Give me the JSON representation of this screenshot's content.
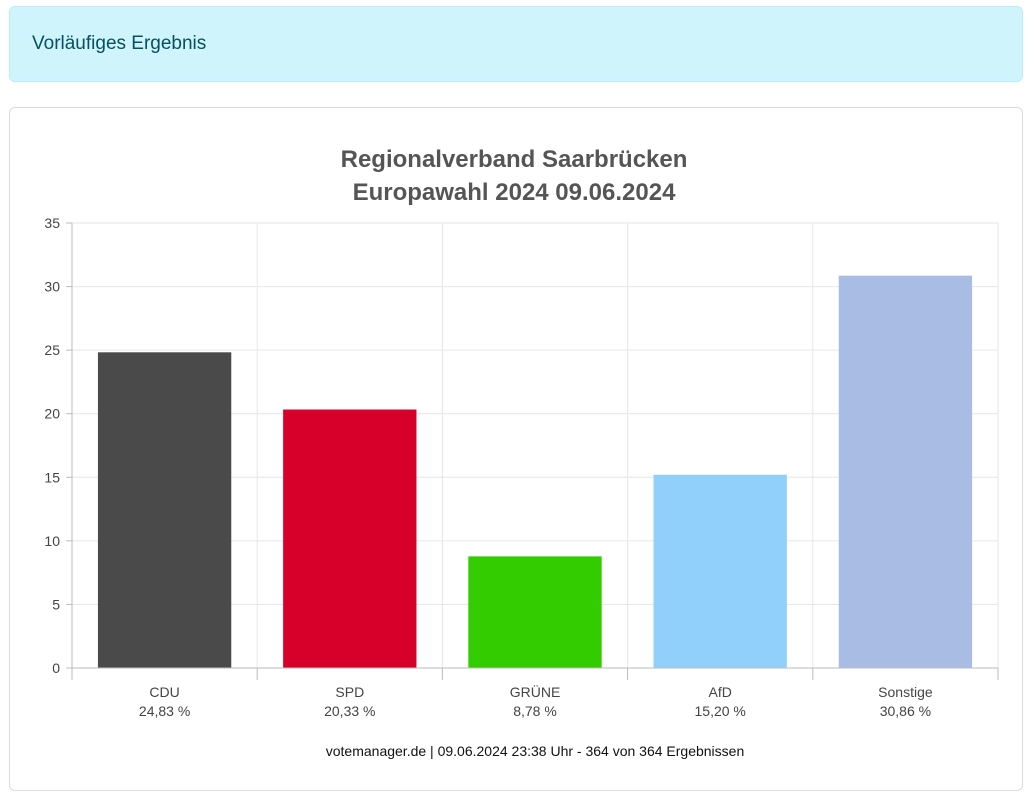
{
  "alert": {
    "text": "Vorläufiges Ergebnis"
  },
  "chart_data": {
    "type": "bar",
    "title": [
      "Regionalverband Saarbrücken",
      "Europawahl 2024 09.06.2024"
    ],
    "categories": [
      "CDU",
      "SPD",
      "GRÜNE",
      "AfD",
      "Sonstige"
    ],
    "values": [
      24.83,
      20.33,
      8.78,
      15.2,
      30.86
    ],
    "value_labels": [
      "24,83 %",
      "20,33 %",
      "8,78 %",
      "15,20 %",
      "30,86 %"
    ],
    "colors": [
      "#4a4a4a",
      "#d7002b",
      "#33cc00",
      "#90d0fa",
      "#a9bde4"
    ],
    "yticks": [
      "0",
      "5",
      "10",
      "15",
      "20",
      "25",
      "30",
      "35"
    ],
    "ylim": [
      0,
      35
    ],
    "grid": true,
    "xlabel": "",
    "ylabel": "",
    "credit": "votemanager.de | 09.06.2024 23:38 Uhr - 364 von 364 Ergebnissen"
  }
}
